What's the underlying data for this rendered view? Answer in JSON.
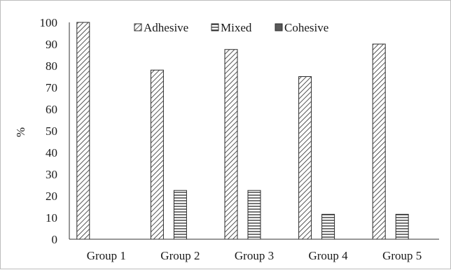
{
  "chart_data": {
    "type": "bar",
    "title": "",
    "xlabel": "",
    "ylabel": "%",
    "ylim": [
      0,
      100
    ],
    "yticks": [
      0,
      10,
      20,
      30,
      40,
      50,
      60,
      70,
      80,
      90,
      100
    ],
    "grid": false,
    "legend_position": "top",
    "categories": [
      "Group 1",
      "Group 2",
      "Group 3",
      "Group 4",
      "Group 5"
    ],
    "series": [
      {
        "name": "Adhesive",
        "values": [
          100,
          78,
          87.5,
          75,
          90
        ],
        "pattern": "diagonal-hatch",
        "color": "#2b2b2b"
      },
      {
        "name": "Mixed",
        "values": [
          0,
          22.5,
          22.5,
          11.5,
          11.5
        ],
        "pattern": "horizontal-hatch",
        "color": "#2b2b2b"
      },
      {
        "name": "Cohesive",
        "values": [
          0,
          0,
          0,
          0,
          0
        ],
        "pattern": "solid",
        "color": "#5a5a5a"
      }
    ]
  }
}
